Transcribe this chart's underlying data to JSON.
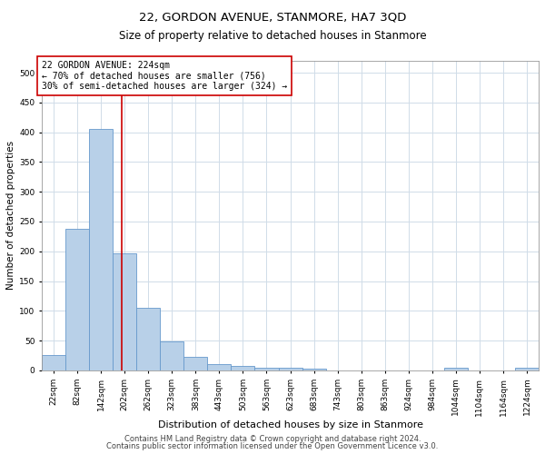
{
  "title1": "22, GORDON AVENUE, STANMORE, HA7 3QD",
  "title2": "Size of property relative to detached houses in Stanmore",
  "xlabel": "Distribution of detached houses by size in Stanmore",
  "ylabel": "Number of detached properties",
  "categories": [
    "22sqm",
    "82sqm",
    "142sqm",
    "202sqm",
    "262sqm",
    "323sqm",
    "383sqm",
    "443sqm",
    "503sqm",
    "563sqm",
    "623sqm",
    "683sqm",
    "743sqm",
    "803sqm",
    "863sqm",
    "924sqm",
    "984sqm",
    "1044sqm",
    "1104sqm",
    "1164sqm",
    "1224sqm"
  ],
  "values": [
    25,
    237,
    406,
    197,
    105,
    48,
    23,
    11,
    7,
    5,
    5,
    3,
    0,
    0,
    0,
    0,
    0,
    4,
    0,
    0,
    4
  ],
  "bar_color": "#b8d0e8",
  "bar_edge_color": "#6699cc",
  "grid_color": "#d0dce8",
  "vline_color": "#cc0000",
  "annotation_box_text": "22 GORDON AVENUE: 224sqm\n← 70% of detached houses are smaller (756)\n30% of semi-detached houses are larger (324) →",
  "annotation_box_color": "#cc0000",
  "annotation_fill_color": "#ffffff",
  "footer1": "Contains HM Land Registry data © Crown copyright and database right 2024.",
  "footer2": "Contains public sector information licensed under the Open Government Licence v3.0.",
  "ylim": [
    0,
    520
  ],
  "yticks": [
    0,
    50,
    100,
    150,
    200,
    250,
    300,
    350,
    400,
    450,
    500
  ],
  "title1_fontsize": 9.5,
  "title2_fontsize": 8.5,
  "xlabel_fontsize": 8,
  "ylabel_fontsize": 7.5,
  "tick_fontsize": 6.5,
  "annotation_fontsize": 7,
  "footer_fontsize": 6
}
